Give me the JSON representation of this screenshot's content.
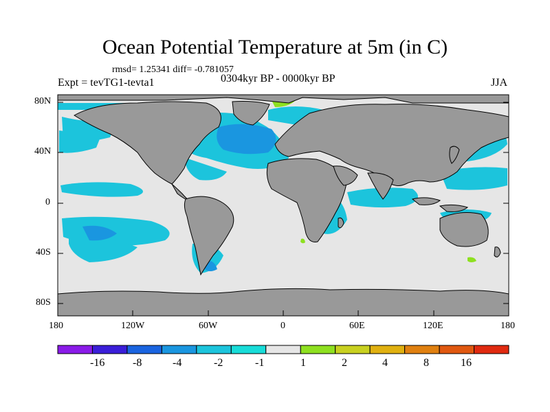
{
  "title": "Ocean Potential Temperature at 5m (in C)",
  "stats_line": "rmsd= 1.25341 diff= -0.781057",
  "experiment": "Expt = tevTG1-tevta1",
  "period": "0304kyr BP - 0000kyr BP",
  "season": "JJA",
  "lat_labels": [
    "80N",
    "40N",
    "0",
    "40S",
    "80S"
  ],
  "lon_labels": [
    "180",
    "120W",
    "60W",
    "0",
    "60E",
    "120E",
    "180"
  ],
  "colorbar": {
    "labels": [
      "-16",
      "-8",
      "-4",
      "-2",
      "-1",
      "1",
      "2",
      "4",
      "8",
      "16"
    ],
    "colors": [
      "#8a1be8",
      "#3a1ed8",
      "#1a64e0",
      "#1a96e0",
      "#1cc4dc",
      "#18dcd8",
      "#e6e6e6",
      "#8ee020",
      "#c8d020",
      "#e0b010",
      "#e08010",
      "#e05810",
      "#e02a10"
    ]
  },
  "map_colors": {
    "ocean_neutral": "#e6e6e6",
    "land": "#999999",
    "coast": "#000000"
  }
}
